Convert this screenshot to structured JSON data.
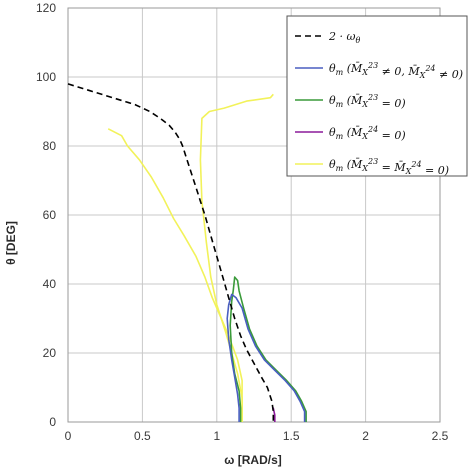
{
  "chart_data": {
    "type": "line",
    "xlabel": "ω [RAD/s]",
    "ylabel": "θ [DEG]",
    "xlim": [
      0,
      2.5
    ],
    "ylim": [
      0,
      120
    ],
    "xticks": [
      0,
      0.5,
      1,
      1.5,
      2,
      2.5
    ],
    "yticks": [
      0,
      20,
      40,
      60,
      80,
      100,
      120
    ],
    "xtick_labels": [
      "0",
      "0.5",
      "1",
      "1.5",
      "2",
      "2.5"
    ],
    "ytick_labels": [
      "0",
      "20",
      "40",
      "60",
      "80",
      "100",
      "120"
    ],
    "grid": true,
    "legend_position": "top-right",
    "series": [
      {
        "name": "2 · ωθ",
        "color": "#000000",
        "dash": "6,4",
        "points": [
          [
            0.0,
            98
          ],
          [
            0.15,
            96
          ],
          [
            0.3,
            94
          ],
          [
            0.45,
            92
          ],
          [
            0.55,
            90
          ],
          [
            0.62,
            88
          ],
          [
            0.68,
            86
          ],
          [
            0.72,
            84
          ],
          [
            0.75,
            82
          ],
          [
            0.77,
            80
          ],
          [
            0.8,
            76
          ],
          [
            0.83,
            72
          ],
          [
            0.86,
            68
          ],
          [
            0.89,
            64
          ],
          [
            0.92,
            60
          ],
          [
            0.96,
            54
          ],
          [
            1.0,
            48
          ],
          [
            1.04,
            42
          ],
          [
            1.08,
            36
          ],
          [
            1.12,
            30
          ],
          [
            1.16,
            25
          ],
          [
            1.2,
            21
          ],
          [
            1.25,
            17
          ],
          [
            1.3,
            13
          ],
          [
            1.34,
            10
          ],
          [
            1.37,
            6
          ],
          [
            1.38,
            3
          ],
          [
            1.38,
            0
          ]
        ]
      },
      {
        "name": "θm (M̄X23 ≠ 0, M̄X24 ≠ 0)",
        "color": "#4a5fc1",
        "dash": "",
        "points": [
          [
            1.15,
            0
          ],
          [
            1.15,
            4
          ],
          [
            1.14,
            8
          ],
          [
            1.12,
            13
          ],
          [
            1.1,
            18
          ],
          [
            1.08,
            24
          ],
          [
            1.07,
            30
          ],
          [
            1.08,
            34
          ],
          [
            1.1,
            37
          ],
          [
            1.13,
            36
          ],
          [
            1.17,
            33
          ],
          [
            1.21,
            27
          ],
          [
            1.26,
            22
          ],
          [
            1.32,
            18
          ],
          [
            1.39,
            15
          ],
          [
            1.46,
            12
          ],
          [
            1.52,
            9
          ],
          [
            1.56,
            6
          ],
          [
            1.59,
            3
          ],
          [
            1.59,
            0
          ]
        ]
      },
      {
        "name": "θm (M̄X23 = 0)",
        "color": "#3a9a3a",
        "dash": "",
        "points": [
          [
            1.16,
            0
          ],
          [
            1.16,
            4
          ],
          [
            1.15,
            9
          ],
          [
            1.12,
            14
          ],
          [
            1.1,
            20
          ],
          [
            1.09,
            28
          ],
          [
            1.1,
            35
          ],
          [
            1.11,
            38
          ],
          [
            1.12,
            42
          ],
          [
            1.14,
            41
          ],
          [
            1.15,
            38
          ],
          [
            1.18,
            33
          ],
          [
            1.22,
            27
          ],
          [
            1.27,
            22
          ],
          [
            1.33,
            18
          ],
          [
            1.4,
            15
          ],
          [
            1.47,
            12
          ],
          [
            1.53,
            9
          ],
          [
            1.57,
            6
          ],
          [
            1.6,
            3
          ],
          [
            1.6,
            0
          ]
        ]
      },
      {
        "name": "θm (M̄X24 = 0)",
        "color": "#8b1a9a",
        "dash": "",
        "points": [
          [
            1.39,
            0
          ],
          [
            1.39,
            2
          ],
          [
            1.38,
            4
          ],
          [
            1.39,
            2
          ],
          [
            1.39,
            0
          ]
        ]
      },
      {
        "name": "θm (M̄X23 = M̄X24 = 0)",
        "color": "#f2f25a",
        "dash": "",
        "points": [
          [
            0.27,
            85
          ],
          [
            0.36,
            83
          ],
          [
            0.4,
            80
          ],
          [
            0.48,
            76
          ],
          [
            0.56,
            71
          ],
          [
            0.64,
            65
          ],
          [
            0.71,
            59
          ],
          [
            0.78,
            54
          ],
          [
            0.86,
            48
          ],
          [
            0.92,
            42
          ],
          [
            0.97,
            36
          ],
          [
            1.03,
            30
          ],
          [
            1.08,
            25
          ],
          [
            1.14,
            18
          ],
          [
            1.17,
            12
          ],
          [
            1.17,
            6
          ],
          [
            1.17,
            0
          ]
        ],
        "branch2": [
          [
            1.17,
            0
          ],
          [
            1.17,
            7
          ],
          [
            1.14,
            14
          ],
          [
            1.1,
            20
          ],
          [
            1.06,
            26
          ],
          [
            1.0,
            34
          ],
          [
            0.96,
            42
          ],
          [
            0.93,
            52
          ],
          [
            0.9,
            64
          ],
          [
            0.89,
            76
          ],
          [
            0.9,
            88
          ],
          [
            0.95,
            90
          ],
          [
            1.05,
            91
          ],
          [
            1.2,
            93
          ],
          [
            1.36,
            94
          ],
          [
            1.38,
            95
          ]
        ]
      }
    ]
  },
  "legend": {
    "items": [
      {
        "prefix": "2 · ω",
        "sub": "θ",
        "rest": ""
      },
      {
        "prefix": "θ",
        "sub": "m",
        "rest": " (M̄",
        "sub2": "X",
        "sup2": "23",
        "mid": " ≠ 0, M̄",
        "sub3": "X",
        "sup3": "24",
        "end": " ≠ 0)"
      },
      {
        "prefix": "θ",
        "sub": "m",
        "rest": " (M̄",
        "sub2": "X",
        "sup2": "23",
        "mid": " = 0)",
        "sub3": "",
        "sup3": "",
        "end": ""
      },
      {
        "prefix": "θ",
        "sub": "m",
        "rest": " (M̄",
        "sub2": "X",
        "sup2": "24",
        "mid": " = 0)",
        "sub3": "",
        "sup3": "",
        "end": ""
      },
      {
        "prefix": "θ",
        "sub": "m",
        "rest": " (M̄",
        "sub2": "X",
        "sup2": "23",
        "mid": " = M̄",
        "sub3": "X",
        "sup3": "24",
        "end": " = 0)"
      }
    ]
  }
}
